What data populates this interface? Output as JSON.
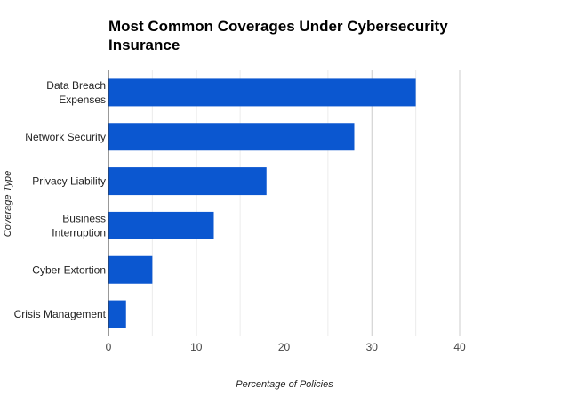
{
  "chart_data": {
    "type": "bar",
    "orientation": "horizontal",
    "title_lines": [
      "Most Common Coverages Under Cybersecurity",
      "Insurance"
    ],
    "title": "Most Common Coverages Under Cybersecurity Insurance",
    "xlabel": "Percentage of Policies",
    "ylabel": "Coverage Type",
    "categories": [
      {
        "lines": [
          "Data Breach",
          "Expenses"
        ],
        "name": "Data Breach Expenses"
      },
      {
        "lines": [
          "Network Security"
        ],
        "name": "Network Security"
      },
      {
        "lines": [
          "Privacy Liability"
        ],
        "name": "Privacy Liability"
      },
      {
        "lines": [
          "Business",
          "Interruption"
        ],
        "name": "Business Interruption"
      },
      {
        "lines": [
          "Cyber Extortion"
        ],
        "name": "Cyber Extortion"
      },
      {
        "lines": [
          "Crisis Management"
        ],
        "name": "Crisis Management"
      }
    ],
    "values": [
      35,
      28,
      18,
      12,
      5,
      2
    ],
    "xlim": [
      0,
      40
    ],
    "x_ticks": [
      0,
      10,
      20,
      30,
      40
    ],
    "x_minor_ticks": [
      5,
      15,
      25,
      35
    ],
    "grid": true,
    "legend": "none",
    "bar_color": "#0b57d0"
  }
}
